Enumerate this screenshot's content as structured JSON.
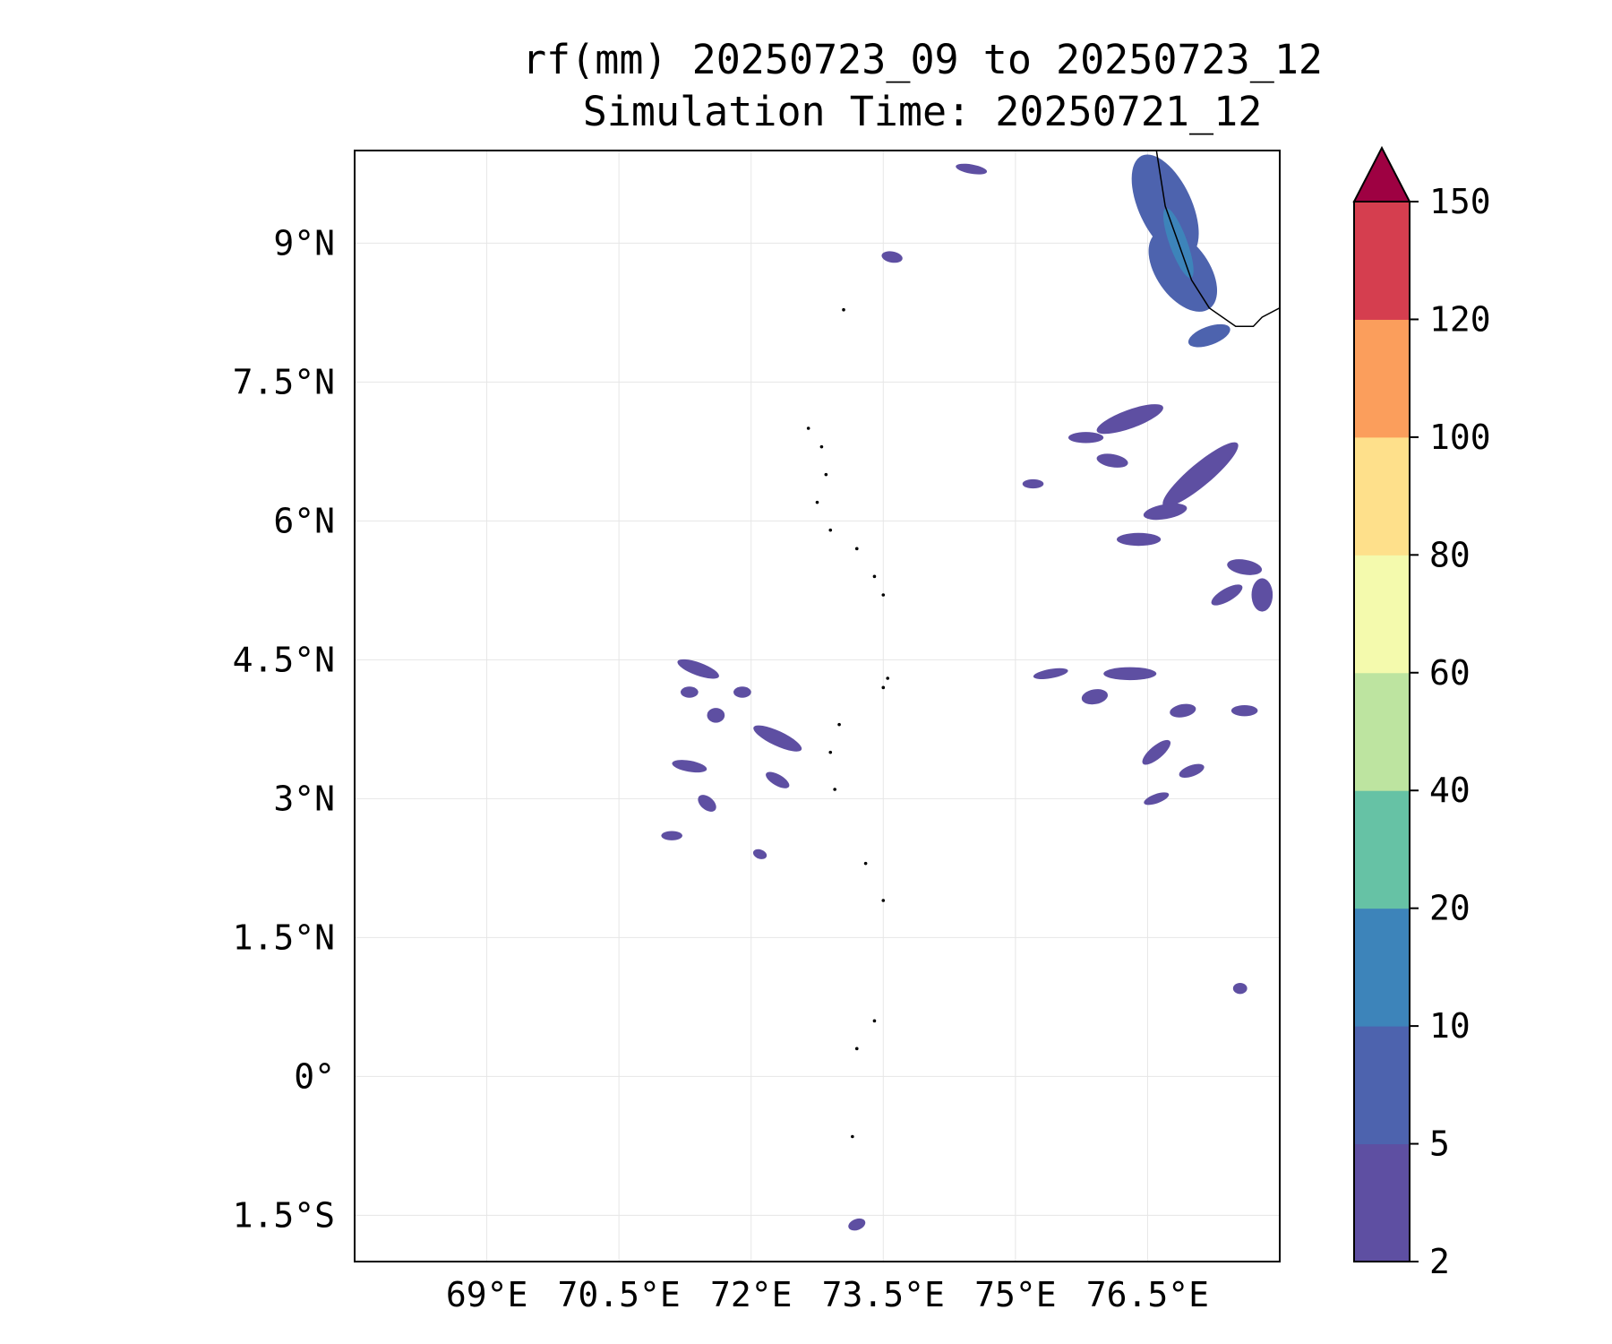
{
  "title": {
    "line1": "rf(mm) 20250723_09 to 20250723_12",
    "line2": "Simulation Time: 20250721_12"
  },
  "map": {
    "lon_range": [
      67.5,
      78.0
    ],
    "lat_range": [
      -2.0,
      10.0
    ],
    "x_ticks": [
      {
        "value": 69.0,
        "label": "69°E"
      },
      {
        "value": 70.5,
        "label": "70.5°E"
      },
      {
        "value": 72.0,
        "label": "72°E"
      },
      {
        "value": 73.5,
        "label": "73.5°E"
      },
      {
        "value": 75.0,
        "label": "75°E"
      },
      {
        "value": 76.5,
        "label": "76.5°E"
      }
    ],
    "y_ticks": [
      {
        "value": 9.0,
        "label": "9°N"
      },
      {
        "value": 7.5,
        "label": "7.5°N"
      },
      {
        "value": 6.0,
        "label": "6°N"
      },
      {
        "value": 4.5,
        "label": "4.5°N"
      },
      {
        "value": 3.0,
        "label": "3°N"
      },
      {
        "value": 1.5,
        "label": "1.5°N"
      },
      {
        "value": 0.0,
        "label": "0°"
      },
      {
        "value": -1.5,
        "label": "1.5°S"
      }
    ],
    "grid": true
  },
  "colorbar": {
    "levels": [
      {
        "label": "2",
        "color": "#5e4fa2"
      },
      {
        "label": "5",
        "color": "#4d63ae"
      },
      {
        "label": "10",
        "color": "#3d84ba"
      },
      {
        "label": "20",
        "color": "#66c2a5"
      },
      {
        "label": "40",
        "color": "#bde4a0"
      },
      {
        "label": "60",
        "color": "#f4faad"
      },
      {
        "label": "80",
        "color": "#fee08b"
      },
      {
        "label": "100",
        "color": "#fb9e5c"
      },
      {
        "label": "120",
        "color": "#d53e4f"
      }
    ],
    "top_label": "150",
    "extend_color": "#9e0142"
  },
  "rain_patches": [
    {
      "lon": 76.7,
      "lat": 9.4,
      "rx": 0.3,
      "ry": 0.6,
      "rot": -25,
      "level": 1
    },
    {
      "lon": 76.9,
      "lat": 8.7,
      "rx": 0.3,
      "ry": 0.5,
      "rot": -35,
      "level": 1
    },
    {
      "lon": 77.2,
      "lat": 8.0,
      "rx": 0.25,
      "ry": 0.1,
      "rot": -20,
      "level": 1
    },
    {
      "lon": 76.85,
      "lat": 9.0,
      "rx": 0.1,
      "ry": 0.4,
      "rot": -20,
      "level": 2
    },
    {
      "lon": 77.1,
      "lat": 6.5,
      "rx": 0.55,
      "ry": 0.12,
      "rot": -40,
      "level": 0
    },
    {
      "lon": 76.3,
      "lat": 7.1,
      "rx": 0.4,
      "ry": 0.1,
      "rot": -20,
      "level": 0
    },
    {
      "lon": 75.8,
      "lat": 6.9,
      "rx": 0.2,
      "ry": 0.06,
      "rot": 0,
      "level": 0
    },
    {
      "lon": 75.2,
      "lat": 6.4,
      "rx": 0.12,
      "ry": 0.05,
      "rot": 0,
      "level": 0
    },
    {
      "lon": 76.1,
      "lat": 6.65,
      "rx": 0.18,
      "ry": 0.07,
      "rot": 10,
      "level": 0
    },
    {
      "lon": 76.7,
      "lat": 6.1,
      "rx": 0.25,
      "ry": 0.08,
      "rot": -10,
      "level": 0
    },
    {
      "lon": 76.4,
      "lat": 5.8,
      "rx": 0.25,
      "ry": 0.07,
      "rot": 0,
      "level": 0
    },
    {
      "lon": 77.6,
      "lat": 5.5,
      "rx": 0.2,
      "ry": 0.08,
      "rot": 10,
      "level": 0
    },
    {
      "lon": 77.4,
      "lat": 5.2,
      "rx": 0.2,
      "ry": 0.07,
      "rot": -30,
      "level": 0
    },
    {
      "lon": 77.8,
      "lat": 5.2,
      "rx": 0.12,
      "ry": 0.18,
      "rot": 0,
      "level": 0
    },
    {
      "lon": 76.3,
      "lat": 4.35,
      "rx": 0.3,
      "ry": 0.07,
      "rot": 0,
      "level": 0
    },
    {
      "lon": 75.9,
      "lat": 4.1,
      "rx": 0.15,
      "ry": 0.08,
      "rot": -10,
      "level": 0
    },
    {
      "lon": 75.4,
      "lat": 4.35,
      "rx": 0.2,
      "ry": 0.05,
      "rot": -10,
      "level": 0
    },
    {
      "lon": 76.9,
      "lat": 3.95,
      "rx": 0.15,
      "ry": 0.07,
      "rot": -10,
      "level": 0
    },
    {
      "lon": 77.6,
      "lat": 3.95,
      "rx": 0.15,
      "ry": 0.06,
      "rot": 0,
      "level": 0
    },
    {
      "lon": 76.6,
      "lat": 3.5,
      "rx": 0.2,
      "ry": 0.07,
      "rot": -40,
      "level": 0
    },
    {
      "lon": 76.6,
      "lat": 3.0,
      "rx": 0.15,
      "ry": 0.05,
      "rot": -20,
      "level": 0
    },
    {
      "lon": 77.0,
      "lat": 3.3,
      "rx": 0.15,
      "ry": 0.06,
      "rot": -20,
      "level": 0
    },
    {
      "lon": 77.55,
      "lat": 0.95,
      "rx": 0.08,
      "ry": 0.06,
      "rot": 0,
      "level": 0
    },
    {
      "lon": 71.4,
      "lat": 4.4,
      "rx": 0.25,
      "ry": 0.07,
      "rot": 20,
      "level": 0
    },
    {
      "lon": 71.3,
      "lat": 4.15,
      "rx": 0.1,
      "ry": 0.06,
      "rot": 0,
      "level": 0
    },
    {
      "lon": 71.9,
      "lat": 4.15,
      "rx": 0.1,
      "ry": 0.06,
      "rot": 0,
      "level": 0
    },
    {
      "lon": 71.6,
      "lat": 3.9,
      "rx": 0.1,
      "ry": 0.08,
      "rot": 0,
      "level": 0
    },
    {
      "lon": 72.3,
      "lat": 3.65,
      "rx": 0.3,
      "ry": 0.08,
      "rot": 25,
      "level": 0
    },
    {
      "lon": 71.3,
      "lat": 3.35,
      "rx": 0.2,
      "ry": 0.06,
      "rot": 10,
      "level": 0
    },
    {
      "lon": 72.3,
      "lat": 3.2,
      "rx": 0.15,
      "ry": 0.06,
      "rot": 30,
      "level": 0
    },
    {
      "lon": 71.5,
      "lat": 2.95,
      "rx": 0.12,
      "ry": 0.07,
      "rot": 40,
      "level": 0
    },
    {
      "lon": 71.1,
      "lat": 2.6,
      "rx": 0.12,
      "ry": 0.05,
      "rot": 0,
      "level": 0
    },
    {
      "lon": 72.1,
      "lat": 2.4,
      "rx": 0.08,
      "ry": 0.05,
      "rot": 20,
      "level": 0
    },
    {
      "lon": 73.2,
      "lat": -1.6,
      "rx": 0.1,
      "ry": 0.06,
      "rot": -20,
      "level": 0
    },
    {
      "lon": 73.6,
      "lat": 8.85,
      "rx": 0.12,
      "ry": 0.06,
      "rot": 10,
      "level": 0
    },
    {
      "lon": 74.5,
      "lat": 9.8,
      "rx": 0.18,
      "ry": 0.05,
      "rot": 10,
      "level": 0
    }
  ],
  "coastline": [
    {
      "points": [
        [
          76.6,
          10.0
        ],
        [
          76.65,
          9.7
        ],
        [
          76.7,
          9.4
        ],
        [
          76.85,
          9.0
        ],
        [
          77.0,
          8.6
        ],
        [
          77.2,
          8.3
        ],
        [
          77.5,
          8.1
        ],
        [
          77.7,
          8.1
        ],
        [
          77.8,
          8.2
        ],
        [
          78.0,
          8.3
        ]
      ]
    }
  ],
  "islands": [
    {
      "lon": 73.05,
      "lat": 8.28
    },
    {
      "lon": 72.65,
      "lat": 7.0
    },
    {
      "lon": 72.8,
      "lat": 6.8
    },
    {
      "lon": 72.85,
      "lat": 6.5
    },
    {
      "lon": 72.75,
      "lat": 6.2
    },
    {
      "lon": 72.9,
      "lat": 5.9
    },
    {
      "lon": 73.2,
      "lat": 5.7
    },
    {
      "lon": 73.4,
      "lat": 5.4
    },
    {
      "lon": 73.5,
      "lat": 5.2
    },
    {
      "lon": 73.55,
      "lat": 4.3
    },
    {
      "lon": 73.5,
      "lat": 4.2
    },
    {
      "lon": 73.0,
      "lat": 3.8
    },
    {
      "lon": 72.9,
      "lat": 3.5
    },
    {
      "lon": 72.95,
      "lat": 3.1
    },
    {
      "lon": 73.3,
      "lat": 2.3
    },
    {
      "lon": 73.5,
      "lat": 1.9
    },
    {
      "lon": 73.4,
      "lat": 0.6
    },
    {
      "lon": 73.2,
      "lat": 0.3
    },
    {
      "lon": 73.15,
      "lat": -0.65
    }
  ]
}
